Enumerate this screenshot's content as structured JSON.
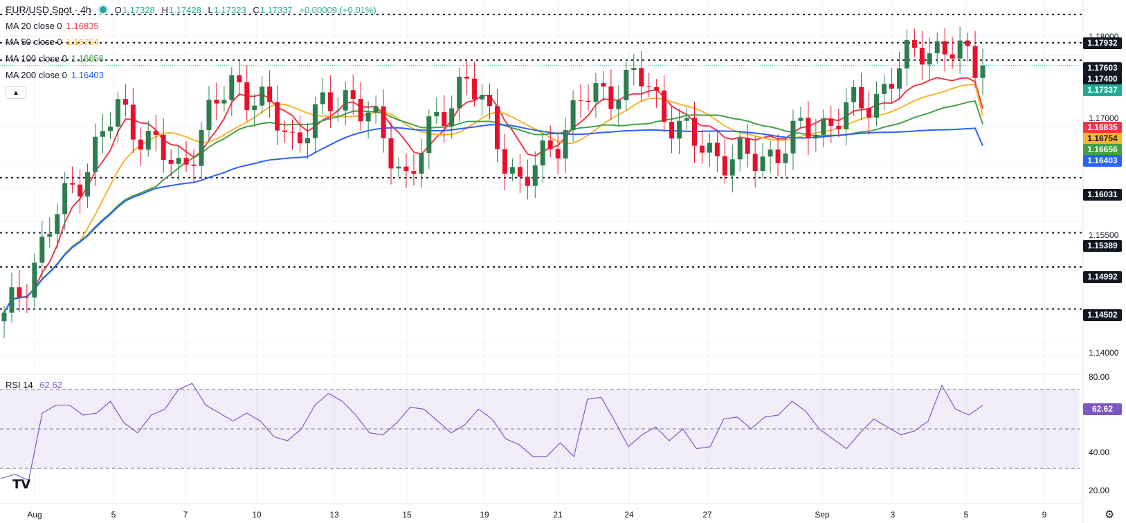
{
  "header": {
    "symbol": "EUR/USD Spot · 4h",
    "ohlc": {
      "o_key": "O",
      "o": "1.17328",
      "h_key": "H",
      "h": "1.17428",
      "l_key": "L",
      "l": "1.17323",
      "c_key": "C",
      "c": "1.17337",
      "change": "+0.00009 (+0.01%)"
    }
  },
  "legend": [
    {
      "label": "MA 20 close 0",
      "value": "1.16835",
      "color": "#f23645"
    },
    {
      "label": "MA 50 close 0",
      "value": "1.16754",
      "color": "#f7b52c"
    },
    {
      "label": "MA 100 close 0",
      "value": "1.16656",
      "color": "#43a047"
    },
    {
      "label": "MA 200 close 0",
      "value": "1.16403",
      "color": "#2962ff"
    }
  ],
  "price_axis": {
    "ticks": [
      "1.18000",
      "1.17000",
      "1.15500",
      "1.14000"
    ],
    "tags": [
      {
        "text": "1.17932",
        "kind": "level"
      },
      {
        "text": "1.17603",
        "kind": "level"
      },
      {
        "text": "1.17400",
        "kind": "level"
      },
      {
        "text": "1.17337",
        "kind": "last"
      },
      {
        "text": "1.16835",
        "kind": "ma20"
      },
      {
        "text": "1.16754",
        "kind": "ma50"
      },
      {
        "text": "1.16656",
        "kind": "ma100"
      },
      {
        "text": "1.16403",
        "kind": "ma200"
      },
      {
        "text": "1.16031",
        "kind": "level"
      },
      {
        "text": "1.15389",
        "kind": "level"
      },
      {
        "text": "1.14992",
        "kind": "level"
      },
      {
        "text": "1.14502",
        "kind": "level"
      }
    ]
  },
  "rsi": {
    "label": "RSI 14",
    "value": "62.62",
    "ticks": [
      "80.00",
      "40.00",
      "20.00"
    ],
    "tag": "62.62"
  },
  "date_axis": {
    "labels": [
      "Aug",
      "5",
      "7",
      "10",
      "13",
      "15",
      "19",
      "21",
      "24",
      "27",
      "Sep",
      "3",
      "5",
      "9"
    ]
  },
  "colors": {
    "up": "#2e7d4f",
    "down": "#e8102a",
    "ma20": "#f23645",
    "ma50": "#f7b52c",
    "ma100": "#43a047",
    "ma200": "#2962ff",
    "rsi": "#7e57c2",
    "last": "#22ab94"
  },
  "icons": {
    "collapse": "chevron-up-icon",
    "logo": "tradingview-logo",
    "settings": "gear-icon"
  },
  "chart_data": {
    "type": "candlestick",
    "title": "EUR/USD Spot · 4h",
    "ylim": [
      1.1375,
      1.181
    ],
    "horizontal_levels": [
      1.17932,
      1.17603,
      1.174,
      1.16031,
      1.15389,
      1.14992,
      1.14502
    ],
    "last_price": 1.17337,
    "key_points": [
      {
        "x": "Aug 1",
        "close": 1.1435
      },
      {
        "x": "Aug 1",
        "close": 1.157
      },
      {
        "x": "Aug 7",
        "close": 1.1685
      },
      {
        "x": "Aug 11",
        "close": 1.161
      },
      {
        "x": "Aug 13",
        "close": 1.172
      },
      {
        "x": "Aug 14",
        "close": 1.165
      },
      {
        "x": "Aug 18",
        "close": 1.1705
      },
      {
        "x": "Aug 22",
        "close": 1.1605
      },
      {
        "x": "Aug 22",
        "close": 1.1725
      },
      {
        "x": "Aug 27",
        "close": 1.159
      },
      {
        "x": "Aug 29",
        "close": 1.169
      },
      {
        "x": "Sep 1",
        "close": 1.172
      },
      {
        "x": "Sep 2",
        "close": 1.164
      },
      {
        "x": "Sep 3",
        "close": 1.162
      },
      {
        "x": "Sep 4",
        "close": 1.166
      },
      {
        "x": "Sep 5",
        "close": 1.169
      },
      {
        "x": "Sep 5",
        "close": 1.176
      },
      {
        "x": "Sep 8",
        "close": 1.1733
      }
    ],
    "moving_averages": [
      {
        "name": "MA 20",
        "last": 1.16835
      },
      {
        "name": "MA 50",
        "last": 1.16754
      },
      {
        "name": "MA 100",
        "last": 1.16656
      },
      {
        "name": "MA 200",
        "last": 1.16403
      }
    ],
    "rsi": {
      "period": 14,
      "last": 62.62,
      "bands": [
        30,
        50,
        70
      ],
      "ylim": [
        15,
        85
      ],
      "values": [
        25,
        27,
        24,
        58,
        62,
        62,
        57,
        58,
        64,
        53,
        48,
        57,
        60,
        70,
        73,
        62,
        58,
        54,
        58,
        54,
        46,
        44,
        50,
        62,
        68,
        64,
        57,
        48,
        47,
        53,
        61,
        60,
        54,
        48,
        52,
        60,
        55,
        45,
        42,
        36,
        36,
        43,
        36,
        65,
        66,
        54,
        41,
        47,
        51,
        44,
        50,
        40,
        41,
        55,
        56,
        50,
        56,
        57,
        64,
        59,
        50,
        45,
        40,
        48,
        55,
        51,
        47,
        49,
        54,
        72,
        60,
        57,
        62
      ]
    }
  }
}
